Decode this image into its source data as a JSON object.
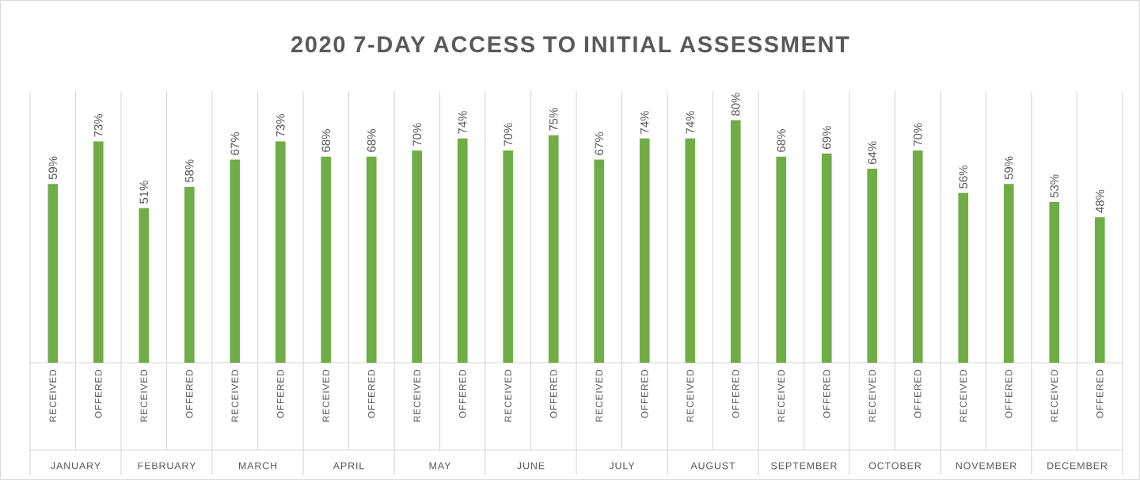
{
  "chart_data": {
    "type": "bar",
    "title": "2020 7-DAY ACCESS TO INITIAL ASSESSMENT",
    "categories": [
      "RECEIVED",
      "OFFERED",
      "RECEIVED",
      "OFFERED",
      "RECEIVED",
      "OFFERED",
      "RECEIVED",
      "OFFERED",
      "RECEIVED",
      "OFFERED",
      "RECEIVED",
      "OFFERED",
      "RECEIVED",
      "OFFERED",
      "RECEIVED",
      "OFFERED",
      "RECEIVED",
      "OFFERED",
      "RECEIVED",
      "OFFERED",
      "RECEIVED",
      "OFFERED",
      "RECEIVED",
      "OFFERED"
    ],
    "values": [
      59,
      73,
      51,
      58,
      67,
      73,
      68,
      68,
      70,
      74,
      70,
      75,
      67,
      74,
      74,
      80,
      68,
      69,
      64,
      70,
      56,
      59,
      53,
      48
    ],
    "value_labels": [
      "59%",
      "73%",
      "51%",
      "58%",
      "67%",
      "73%",
      "68%",
      "68%",
      "70%",
      "74%",
      "70%",
      "75%",
      "67%",
      "74%",
      "74%",
      "80%",
      "68%",
      "69%",
      "64%",
      "70%",
      "56%",
      "59%",
      "53%",
      "48%"
    ],
    "color": "#70ad47",
    "annotations": [
      "JANUARY",
      "FEBRUARY",
      "MARCH",
      "APRIL",
      "MAY",
      "JUNE",
      "JULY",
      "AUGUST",
      "SEPTEMBER",
      "OCTOBER",
      "NOVEMBER",
      "DECEMBER"
    ]
  }
}
